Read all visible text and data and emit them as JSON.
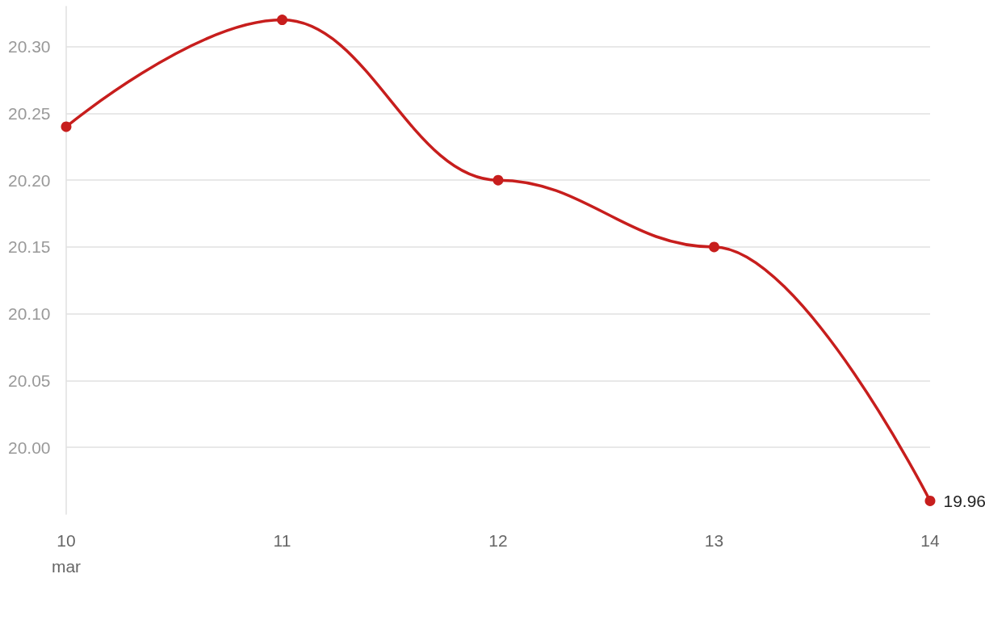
{
  "chart_data": {
    "type": "line",
    "categories": [
      "10\nmar",
      "11",
      "12",
      "13",
      "14"
    ],
    "series": [
      {
        "color": "#c71e1d",
        "values": [
          20.24,
          20.32,
          20.2,
          20.15,
          19.96
        ],
        "value_labels": [
          null,
          null,
          null,
          null,
          "19.96"
        ]
      }
    ],
    "ylim": [
      19.95,
      20.33
    ],
    "yticks": [
      {
        "value": 20,
        "label": "20.00"
      },
      {
        "value": 20.05,
        "label": "20.05"
      },
      {
        "value": 20.1,
        "label": "20.10"
      },
      {
        "value": 20.15,
        "label": "20.15"
      },
      {
        "value": 20.2,
        "label": "20.20"
      },
      {
        "value": 20.25,
        "label": "20.25"
      },
      {
        "value": 20.3,
        "label": "20.30"
      }
    ],
    "grid": "y",
    "marker": "circle",
    "line_style": "solid"
  }
}
